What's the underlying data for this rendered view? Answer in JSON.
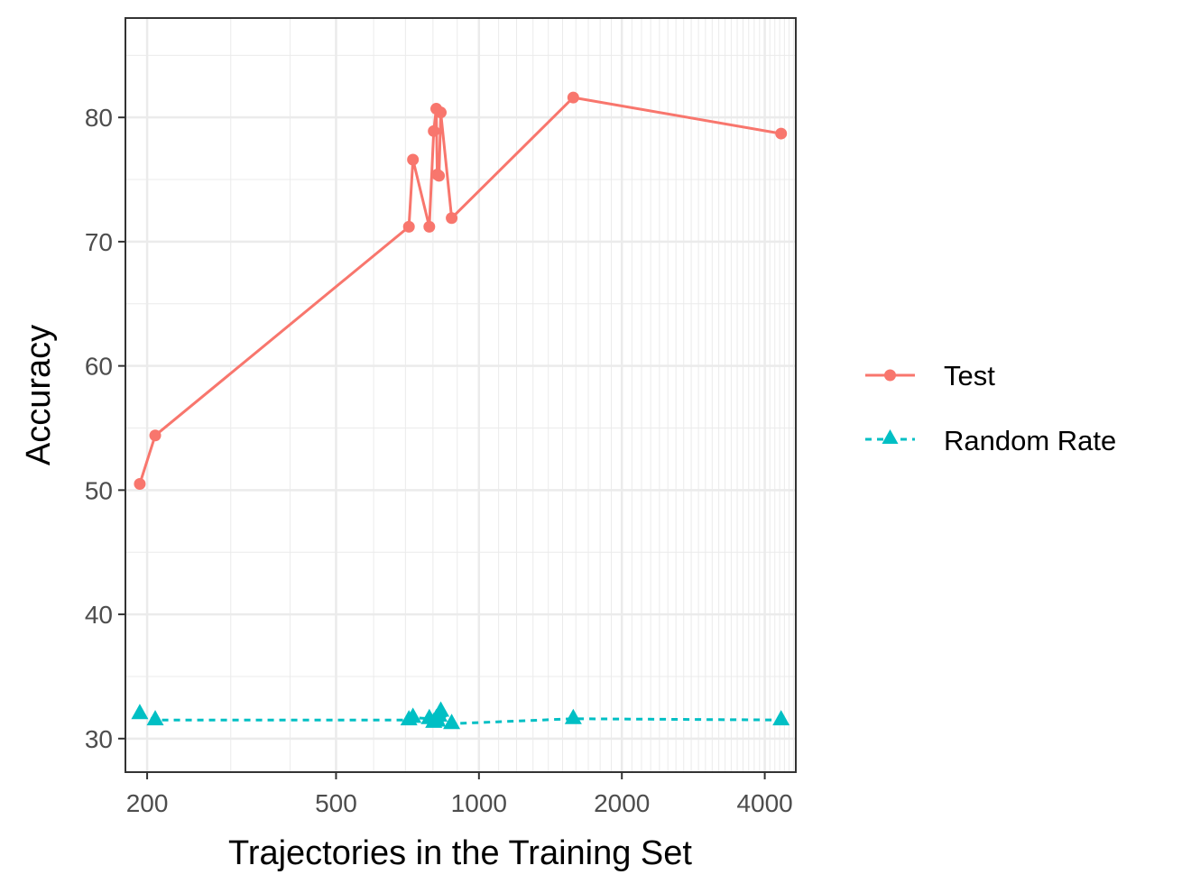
{
  "chart_data": {
    "type": "line",
    "title": "",
    "xlabel": "Trajectories in the Training Set",
    "ylabel": "Accuracy",
    "x_scale": "log10",
    "xlim": [
      180,
      4650
    ],
    "ylim": [
      27.3,
      88
    ],
    "grid": true,
    "x_ticks": [
      200,
      500,
      1000,
      2000,
      4000
    ],
    "x_tick_labels": [
      "200",
      "500",
      "1000",
      "2000",
      "4000"
    ],
    "y_ticks": [
      30,
      40,
      50,
      60,
      70,
      80
    ],
    "y_tick_labels": [
      "30",
      "40",
      "50",
      "60",
      "70",
      "80"
    ],
    "legend_position": "right",
    "series": [
      {
        "name": "Test",
        "color": "#F8766D",
        "line": "solid",
        "marker": "circle",
        "x": [
          193,
          208,
          712,
          726,
          786,
          803,
          813,
          817,
          824,
          831,
          876,
          1580,
          4330
        ],
        "y": [
          50.5,
          54.4,
          71.2,
          76.6,
          71.2,
          78.9,
          80.7,
          75.4,
          75.3,
          80.4,
          71.9,
          81.6,
          78.7
        ]
      },
      {
        "name": "Random Rate",
        "color": "#00BFC4",
        "line": "dashed",
        "marker": "triangle",
        "x": [
          193,
          208,
          712,
          726,
          786,
          803,
          813,
          817,
          824,
          831,
          876,
          1580,
          4330
        ],
        "y": [
          32.0,
          31.5,
          31.5,
          31.7,
          31.6,
          31.3,
          31.6,
          31.4,
          31.8,
          32.2,
          31.2,
          31.6,
          31.5
        ]
      }
    ]
  }
}
